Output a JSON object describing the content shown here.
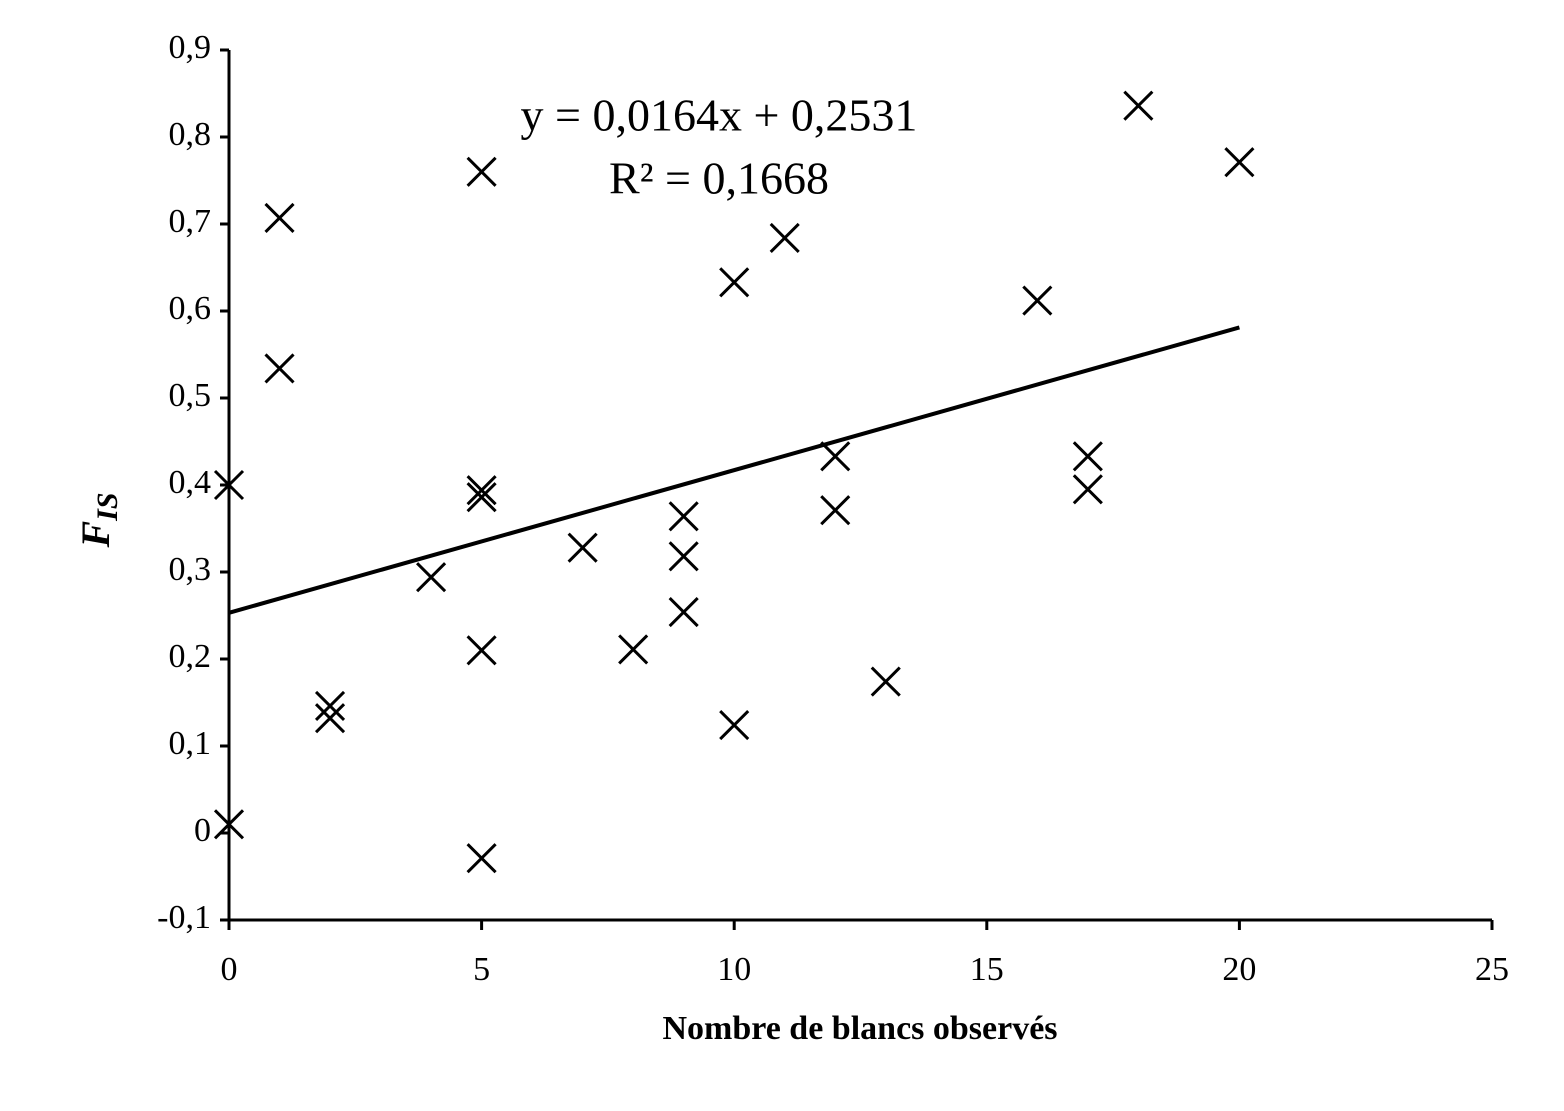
{
  "chart_data": {
    "type": "scatter",
    "x_label": "Nombre de blancs observés",
    "y_label": "F",
    "y_label_sub": "IS",
    "annotations": [
      "y = 0,0164x + 0,2531",
      "R² = 0,1668"
    ],
    "trendline": {
      "slope": 0.0164,
      "intercept": 0.2531
    },
    "series": [
      {
        "name": "FIS",
        "color": "#000000",
        "marker": "x",
        "x": [
          0,
          0,
          1,
          1,
          2,
          2,
          4,
          5,
          5,
          5,
          5,
          5,
          7,
          8,
          9,
          9,
          9,
          10,
          10,
          11,
          12,
          12,
          13,
          16,
          17,
          17,
          18,
          20
        ],
        "values": [
          0.4,
          0.01,
          0.707,
          0.534,
          0.146,
          0.132,
          0.294,
          0.76,
          0.394,
          0.386,
          0.21,
          -0.029,
          0.328,
          0.211,
          0.364,
          0.318,
          0.254,
          0.633,
          0.124,
          0.684,
          0.433,
          0.371,
          0.174,
          0.612,
          0.433,
          0.395,
          0.836,
          0.771
        ]
      }
    ],
    "xlim": [
      0,
      25
    ],
    "xticks": [
      0,
      5,
      10,
      15,
      20,
      25
    ],
    "ylim": [
      -0.1,
      0.9
    ],
    "yticks": [
      {
        "value": -0.1,
        "label": "-0,1"
      },
      0,
      {
        "value": 0.1,
        "label": "0,1"
      },
      {
        "value": 0.2,
        "label": "0,2"
      },
      {
        "value": 0.3,
        "label": "0,3"
      },
      {
        "value": 0.4,
        "label": "0,4"
      },
      {
        "value": 0.5,
        "label": "0,5"
      },
      {
        "value": 0.6,
        "label": "0,6"
      },
      {
        "value": 0.7,
        "label": "0,7"
      },
      {
        "value": 0.8,
        "label": "0,8"
      },
      {
        "value": 0.9,
        "label": "0,9"
      }
    ],
    "grid": false
  }
}
